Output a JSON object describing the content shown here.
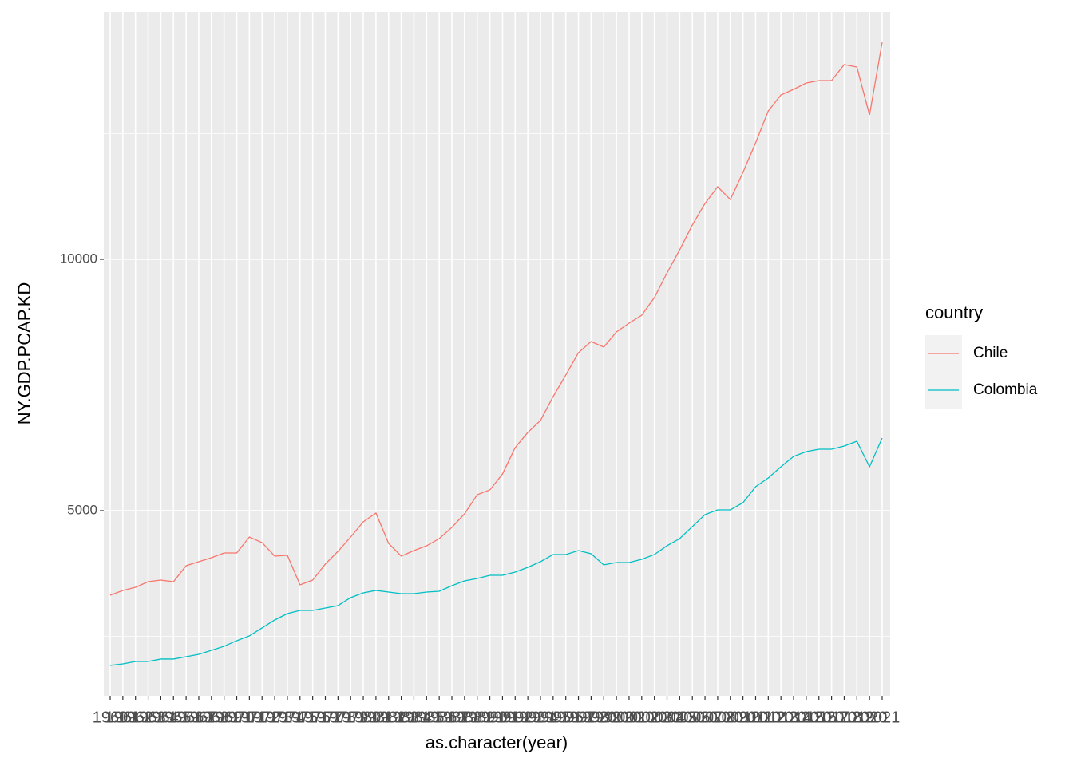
{
  "chart_data": {
    "type": "line",
    "x_label": "as.character(year)",
    "y_label": "NY.GDP.PCAP.KD",
    "legend_title": "country",
    "categories": [
      "1960",
      "1961",
      "1962",
      "1963",
      "1964",
      "1965",
      "1966",
      "1967",
      "1968",
      "1969",
      "1970",
      "1971",
      "1972",
      "1973",
      "1974",
      "1975",
      "1976",
      "1977",
      "1978",
      "1979",
      "1980",
      "1981",
      "1982",
      "1983",
      "1984",
      "1985",
      "1986",
      "1987",
      "1988",
      "1989",
      "1990",
      "1991",
      "1992",
      "1993",
      "1994",
      "1995",
      "1996",
      "1997",
      "1998",
      "1999",
      "2000",
      "2001",
      "2002",
      "2003",
      "2004",
      "2005",
      "2006",
      "2007",
      "2008",
      "2009",
      "2010",
      "2011",
      "2012",
      "2013",
      "2014",
      "2015",
      "2016",
      "2017",
      "2018",
      "2019",
      "2020",
      "2021"
    ],
    "series": [
      {
        "name": "Chile",
        "color": "#F8766D",
        "values": [
          3317,
          3413,
          3476,
          3587,
          3619,
          3587,
          3905,
          3984,
          4063,
          4159,
          4159,
          4476,
          4365,
          4095,
          4111,
          3524,
          3619,
          3937,
          4190,
          4476,
          4778,
          4952,
          4349,
          4095,
          4206,
          4301,
          4444,
          4667,
          4937,
          5317,
          5413,
          5730,
          6254,
          6556,
          6794,
          7270,
          7698,
          8143,
          8365,
          8254,
          8556,
          8730,
          8889,
          9238,
          9730,
          10190,
          10683,
          11111,
          11444,
          11190,
          11730,
          12317,
          12952,
          13270,
          13381,
          13508,
          13556,
          13556,
          13873,
          13825,
          12873,
          14317
        ]
      },
      {
        "name": "Colombia",
        "color": "#00BFC4",
        "values": [
          1921,
          1952,
          2000,
          2000,
          2048,
          2048,
          2095,
          2143,
          2222,
          2302,
          2413,
          2508,
          2667,
          2825,
          2952,
          3016,
          3016,
          3063,
          3111,
          3270,
          3365,
          3413,
          3381,
          3349,
          3349,
          3381,
          3397,
          3508,
          3603,
          3651,
          3714,
          3714,
          3778,
          3873,
          3984,
          4127,
          4127,
          4206,
          4143,
          3921,
          3968,
          3968,
          4032,
          4127,
          4302,
          4444,
          4683,
          4921,
          5016,
          5016,
          5159,
          5476,
          5651,
          5873,
          6079,
          6175,
          6222,
          6222,
          6286,
          6381,
          5873,
          6444
        ]
      }
    ],
    "ylim": [
      1317,
      14921
    ],
    "yticks": [
      5000,
      10000
    ],
    "yminorticks": [
      2500,
      7500,
      12500
    ],
    "grid": true
  }
}
